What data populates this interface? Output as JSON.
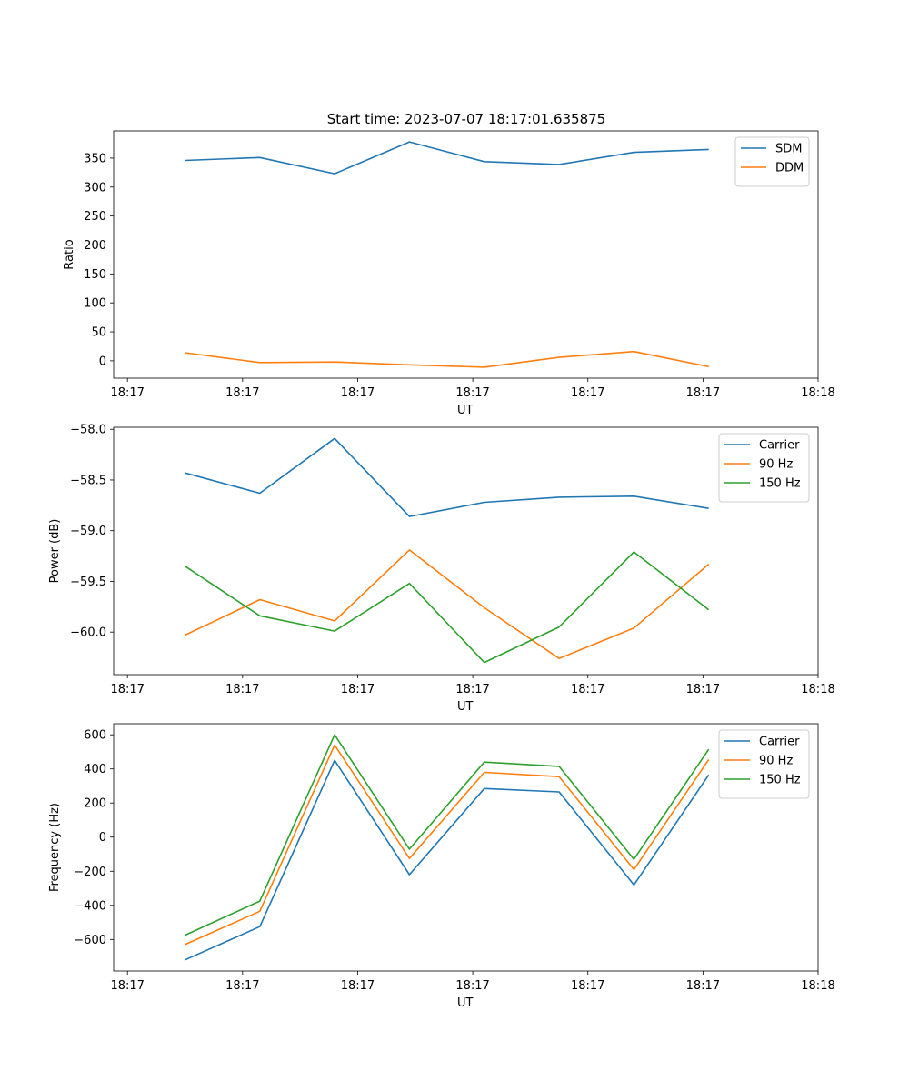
{
  "figure_title": "Start time: 2023-07-07 18:17:01.635875",
  "colors": {
    "c0": "#1f77b4",
    "c1": "#ff7f0e",
    "c2": "#2ca02c"
  },
  "chart_data": [
    {
      "type": "line",
      "title": "Start time: 2023-07-07 18:17:01.635875",
      "xlabel": "UT",
      "ylabel": "Ratio",
      "x_tick_labels": [
        "18:17",
        "18:17",
        "18:17",
        "18:17",
        "18:17",
        "18:17",
        "18:18"
      ],
      "x": [
        0.5,
        1.15,
        1.8,
        2.45,
        3.1,
        3.75,
        4.4,
        5.05
      ],
      "xlim": [
        -0.12,
        6.0
      ],
      "ylim": [
        -30,
        397
      ],
      "y_ticks": [
        0,
        50,
        100,
        150,
        200,
        250,
        300,
        350
      ],
      "legend_position": "top-right",
      "series": [
        {
          "name": "SDM",
          "color": "#1f77b4",
          "values": [
            346,
            351,
            323,
            378,
            344,
            339,
            360,
            365
          ]
        },
        {
          "name": "DDM",
          "color": "#ff7f0e",
          "values": [
            14,
            -3,
            -2,
            -7,
            -11,
            6,
            16,
            -10
          ]
        }
      ]
    },
    {
      "type": "line",
      "title": "",
      "xlabel": "UT",
      "ylabel": "Power (dB)",
      "x_tick_labels": [
        "18:17",
        "18:17",
        "18:17",
        "18:17",
        "18:17",
        "18:17",
        "18:18"
      ],
      "x": [
        0.5,
        1.15,
        1.8,
        2.45,
        3.1,
        3.75,
        4.4,
        5.05
      ],
      "xlim": [
        -0.12,
        6.0
      ],
      "ylim": [
        -60.42,
        -57.98
      ],
      "y_ticks": [
        -60.0,
        -59.5,
        -59.0,
        -58.5,
        -58.0
      ],
      "y_tick_labels": [
        "−60.0",
        "−59.5",
        "−59.0",
        "−58.5",
        "−58.0"
      ],
      "legend_position": "top-right",
      "series": [
        {
          "name": "Carrier",
          "color": "#1f77b4",
          "values": [
            -58.43,
            -58.63,
            -58.09,
            -58.86,
            -58.72,
            -58.67,
            -58.66,
            -58.78
          ]
        },
        {
          "name": "90 Hz",
          "color": "#ff7f0e",
          "values": [
            -60.03,
            -59.68,
            -59.89,
            -59.19,
            -59.76,
            -60.26,
            -59.96,
            -59.33
          ]
        },
        {
          "name": "150 Hz",
          "color": "#2ca02c",
          "values": [
            -59.35,
            -59.84,
            -59.99,
            -59.52,
            -60.3,
            -59.95,
            -59.21,
            -59.78
          ]
        }
      ]
    },
    {
      "type": "line",
      "title": "",
      "xlabel": "UT",
      "ylabel": "Frequency (Hz)",
      "x_tick_labels": [
        "18:17",
        "18:17",
        "18:17",
        "18:17",
        "18:17",
        "18:17",
        "18:18"
      ],
      "x": [
        0.5,
        1.15,
        1.8,
        2.45,
        3.1,
        3.75,
        4.4,
        5.05
      ],
      "xlim": [
        -0.12,
        6.0
      ],
      "ylim": [
        -785,
        665
      ],
      "y_ticks": [
        -600,
        -400,
        -200,
        0,
        200,
        400,
        600
      ],
      "y_tick_labels": [
        "−600",
        "−400",
        "−200",
        "0",
        "200",
        "400",
        "600"
      ],
      "legend_position": "top-right",
      "series": [
        {
          "name": "Carrier",
          "color": "#1f77b4",
          "values": [
            -720,
            -525,
            450,
            -220,
            285,
            265,
            -280,
            365
          ]
        },
        {
          "name": "90 Hz",
          "color": "#ff7f0e",
          "values": [
            -630,
            -435,
            540,
            -125,
            380,
            355,
            -190,
            455
          ]
        },
        {
          "name": "150 Hz",
          "color": "#2ca02c",
          "values": [
            -575,
            -375,
            600,
            -70,
            440,
            415,
            -130,
            515
          ]
        }
      ]
    }
  ]
}
